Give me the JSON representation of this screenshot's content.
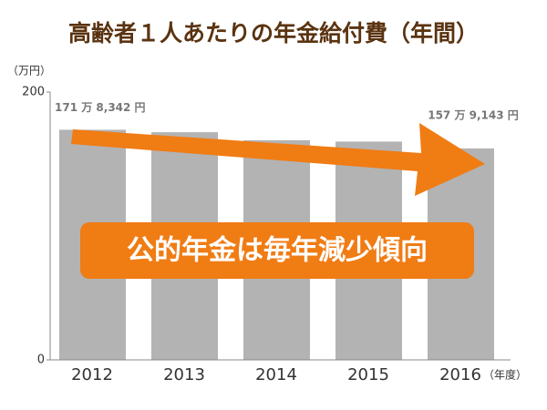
{
  "chart_data": {
    "type": "bar",
    "title": "高齢者１人あたりの年金給付費（年間）",
    "y_unit": "（万円）",
    "x_unit": "（年度）",
    "annotation": "公的年金は毎年減少傾向",
    "categories": [
      "2012",
      "2013",
      "2014",
      "2015",
      "2016"
    ],
    "values": [
      171.8342,
      170,
      164,
      163,
      157.9143
    ],
    "value_labels": [
      "171 万 8,342 円",
      null,
      null,
      null,
      "157 万 9,143 円"
    ],
    "color": "#b3b3b3",
    "ylim": [
      0,
      200
    ],
    "yticks": [
      0,
      200
    ]
  }
}
